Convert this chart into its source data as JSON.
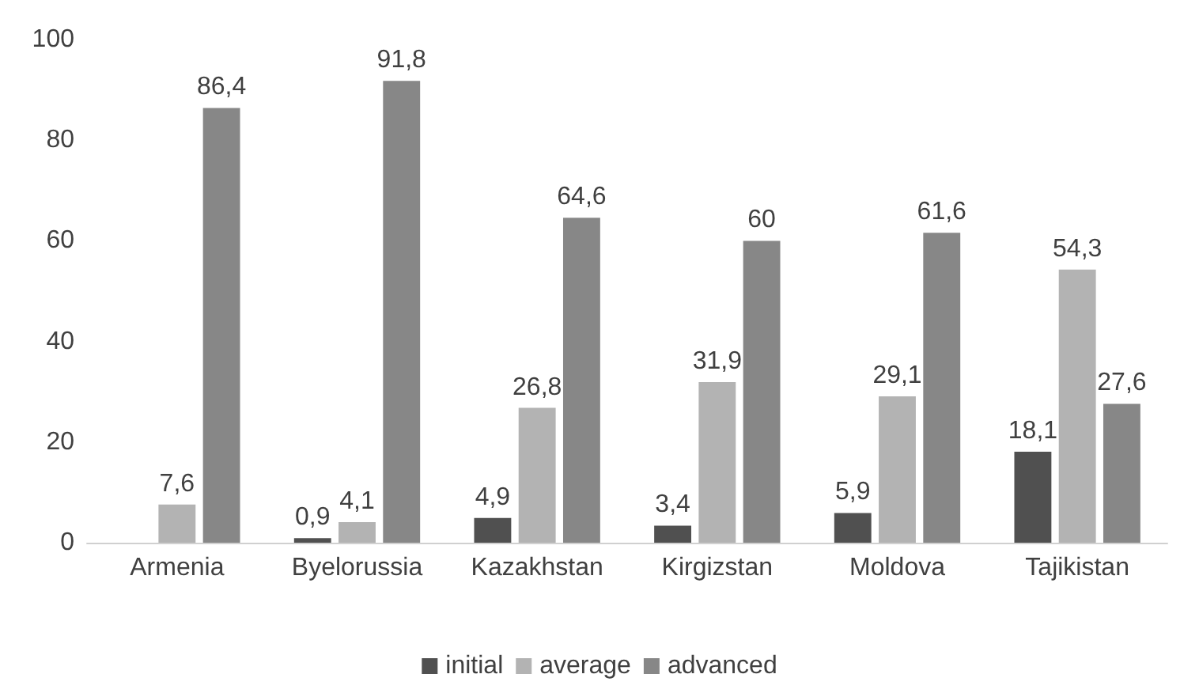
{
  "chart_data": {
    "type": "bar",
    "categories": [
      "Armenia",
      "Byelorussia",
      "Kazakhstan",
      "Kirgizstan",
      "Moldova",
      "Tajikistan"
    ],
    "series": [
      {
        "name": "initial",
        "color": "#505050",
        "values": [
          null,
          0.9,
          4.9,
          3.4,
          5.9,
          18.1
        ],
        "value_labels": [
          null,
          "0,9",
          "4,9",
          "3,4",
          "5,9",
          "18,1"
        ]
      },
      {
        "name": "average",
        "color": "#b3b3b3",
        "values": [
          7.6,
          4.1,
          26.8,
          31.9,
          29.1,
          54.3
        ],
        "value_labels": [
          "7,6",
          "4,1",
          "26,8",
          "31,9",
          "29,1",
          "54,3"
        ]
      },
      {
        "name": "advanced",
        "color": "#878787",
        "values": [
          86.4,
          91.8,
          64.6,
          60,
          61.6,
          27.6
        ],
        "value_labels": [
          "86,4",
          "91,8",
          "64,6",
          "60",
          "61,6",
          "27,6"
        ]
      }
    ],
    "ylim": [
      0,
      100
    ],
    "yticks": [
      0,
      20,
      40,
      60,
      80,
      100
    ],
    "grid": false,
    "legend": "bottom"
  }
}
